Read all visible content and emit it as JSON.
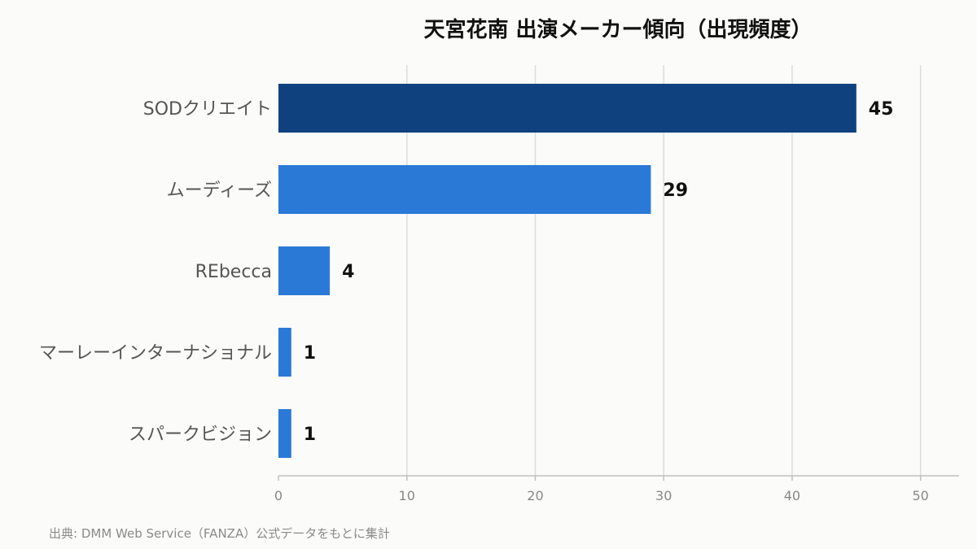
{
  "chart_data": {
    "type": "bar",
    "orientation": "horizontal",
    "title": "天宮花南 出演メーカー傾向（出現頻度）",
    "categories": [
      "SODクリエイト",
      "ムーディーズ",
      "REbecca",
      "マーレーインターナショナル",
      "スパークビジョン"
    ],
    "values": [
      45,
      29,
      4,
      1,
      1
    ],
    "xlim": [
      0,
      53
    ],
    "xticks": [
      0,
      10,
      20,
      30,
      40,
      50
    ],
    "grid": true,
    "colors": {
      "highlight": "#10417f",
      "default": "#2b79d6"
    }
  },
  "source_note": "出典: DMM Web Service（FANZA）公式データをもとに集計"
}
